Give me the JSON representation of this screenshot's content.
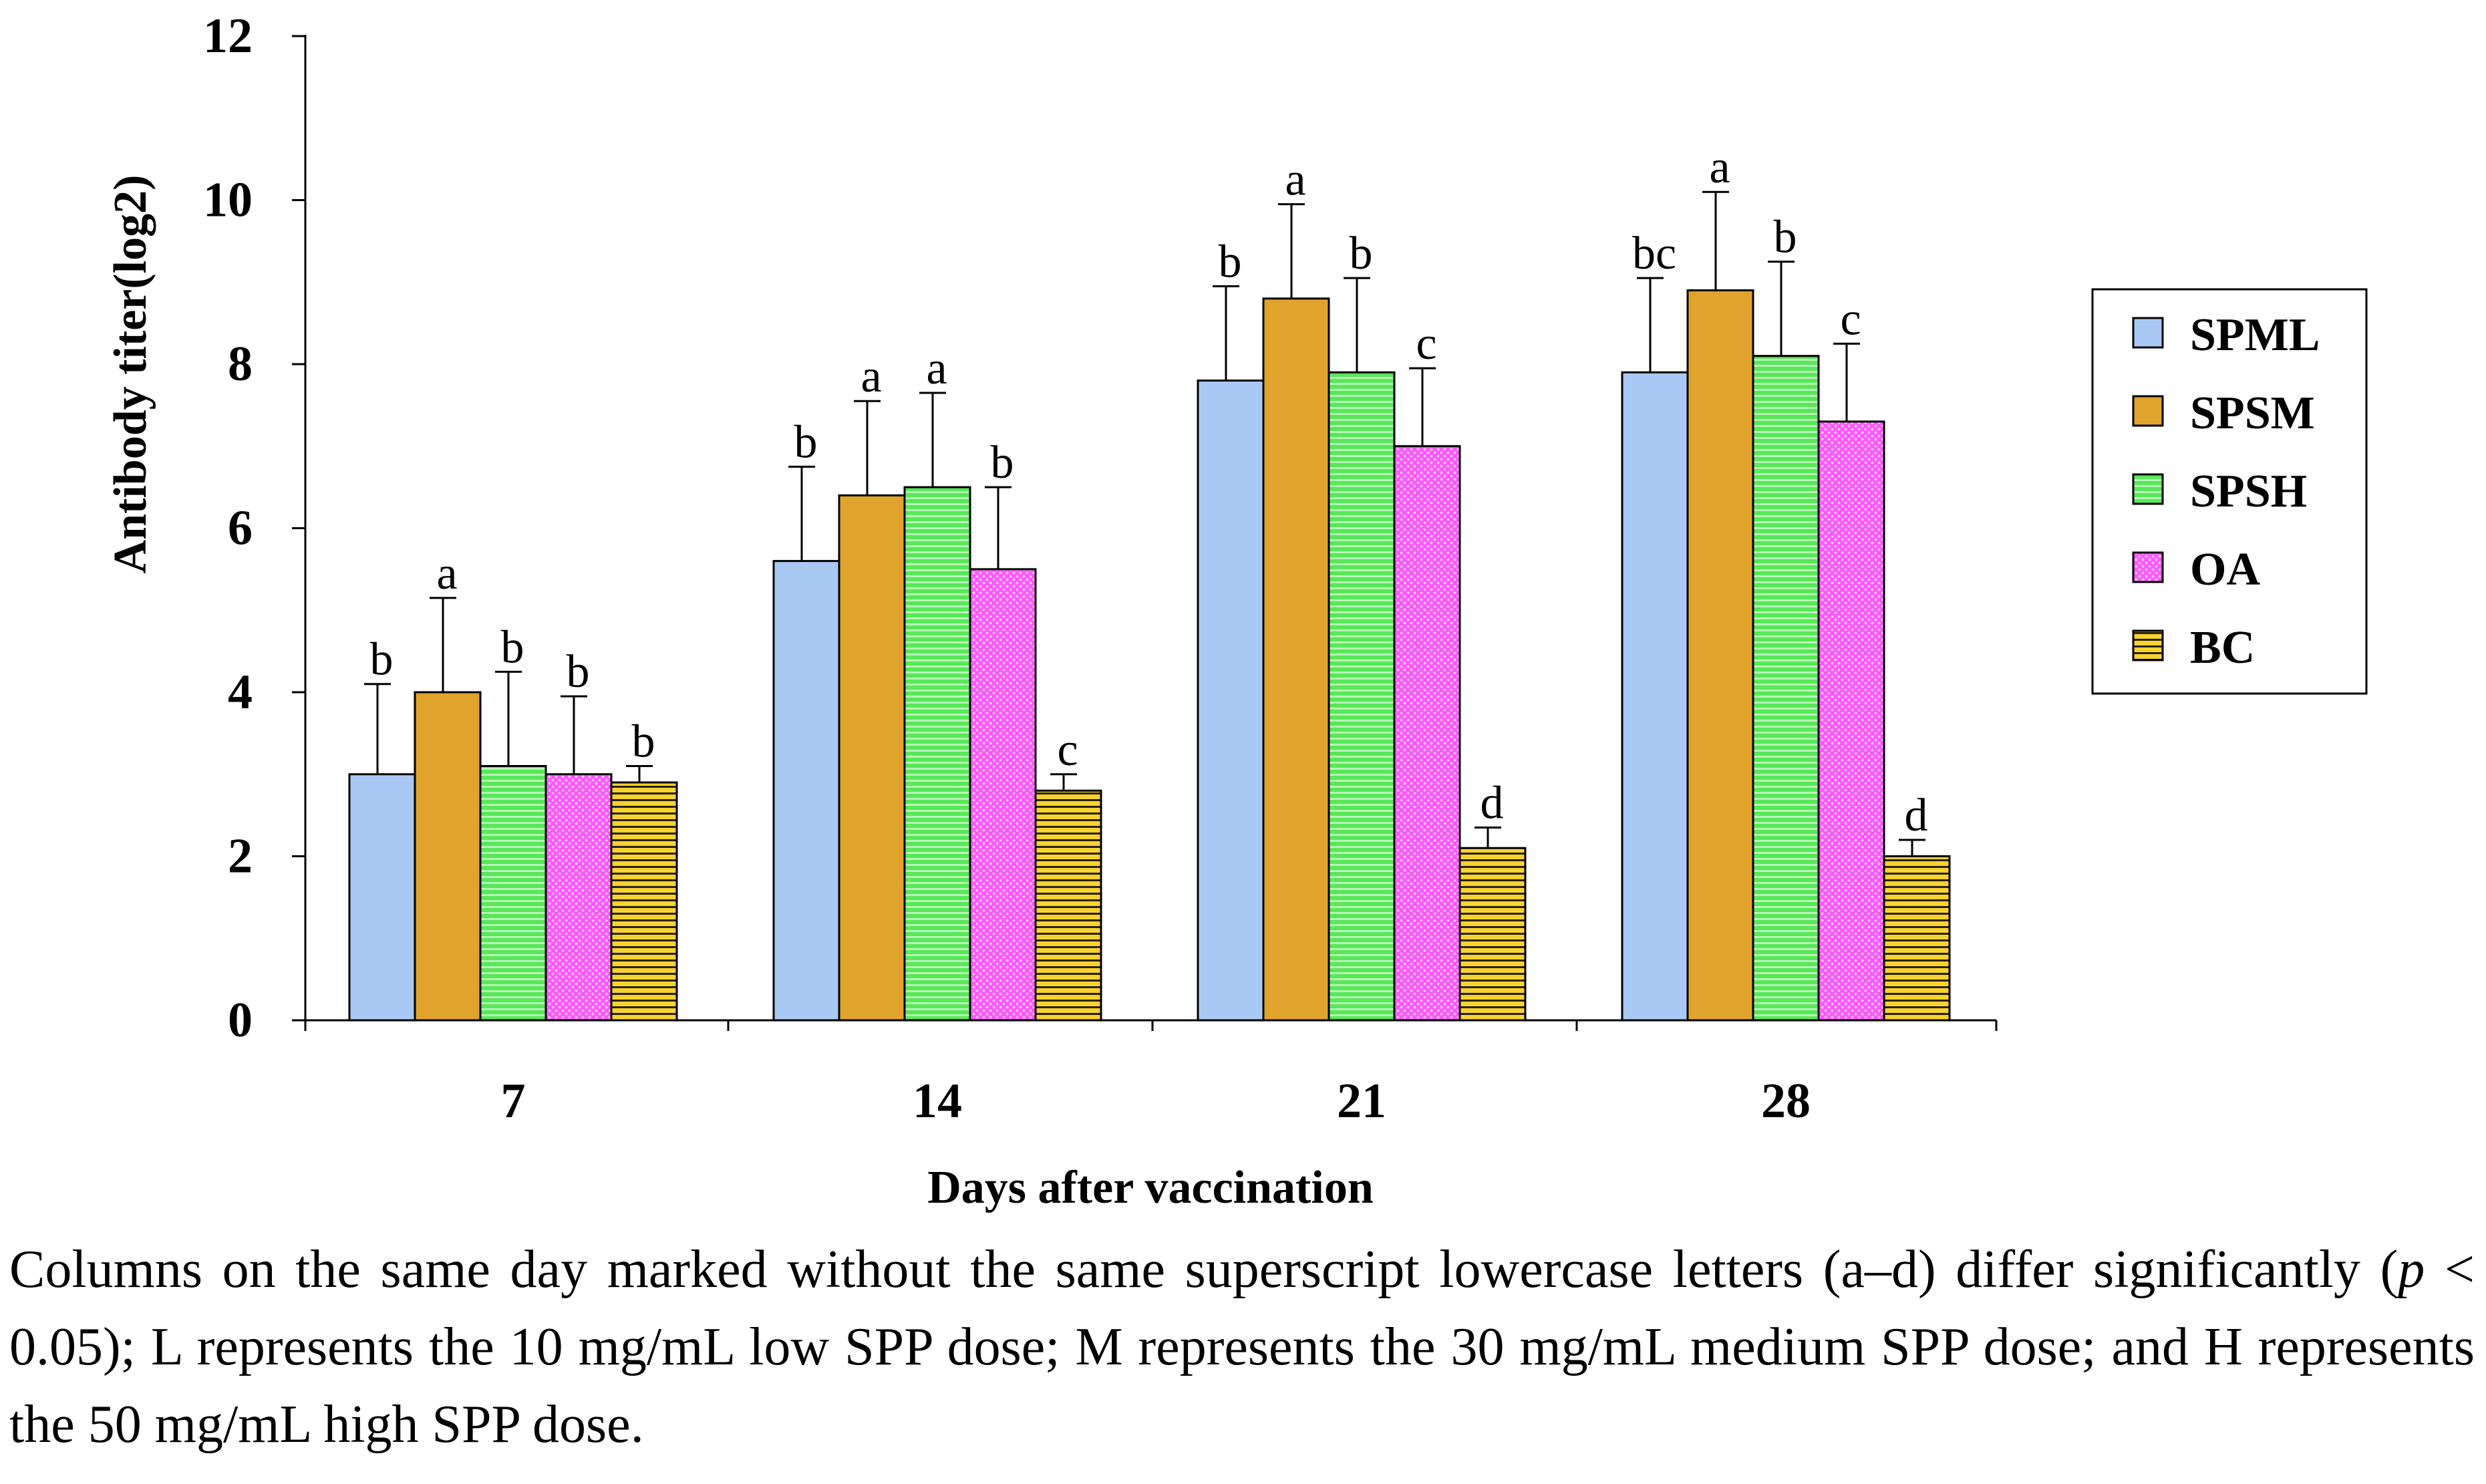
{
  "chart_data": {
    "type": "bar",
    "title": "",
    "xlabel": "Days after vaccination",
    "ylabel": "Antibody titer(log2)",
    "ylim": [
      0,
      12
    ],
    "yticks": [
      "0",
      "2",
      "4",
      "6",
      "8",
      "10",
      "12"
    ],
    "categories": [
      "7",
      "14",
      "21",
      "28"
    ],
    "legend_position": "right",
    "series": [
      {
        "name": "SPML",
        "color": "#a9c9f5",
        "pattern": "plain",
        "values": [
          3.0,
          5.6,
          7.8,
          7.9
        ],
        "errors": [
          1.1,
          1.15,
          1.15,
          1.15
        ],
        "labels": [
          "b",
          "b",
          "b",
          "bc"
        ]
      },
      {
        "name": "SPSM",
        "color": "#e0a32c",
        "pattern": "plain",
        "values": [
          4.0,
          6.4,
          8.8,
          8.9
        ],
        "errors": [
          1.15,
          1.15,
          1.15,
          1.2
        ],
        "labels": [
          "a",
          "a",
          "a",
          "a"
        ]
      },
      {
        "name": "SPSH",
        "color": "#58e858",
        "pattern": "hlines",
        "values": [
          3.1,
          6.5,
          7.9,
          8.1
        ],
        "errors": [
          1.15,
          1.15,
          1.15,
          1.15
        ],
        "labels": [
          "b",
          "a",
          "b",
          "b"
        ]
      },
      {
        "name": "OA",
        "color": "#ff55ff",
        "pattern": "dots",
        "values": [
          3.0,
          5.5,
          7.0,
          7.3
        ],
        "errors": [
          0.95,
          1.0,
          0.95,
          0.95
        ],
        "labels": [
          "b",
          "b",
          "c",
          "c"
        ]
      },
      {
        "name": "BC",
        "color": "#f7d233",
        "pattern": "hstripes",
        "values": [
          2.9,
          2.8,
          2.1,
          2.0
        ],
        "errors": [
          0.2,
          0.2,
          0.25,
          0.2
        ],
        "labels": [
          "b",
          "c",
          "d",
          "d"
        ]
      }
    ]
  },
  "caption": {
    "part1": "Columns on the same day marked without the same superscript lowercase letters (a–d) differ significantly (",
    "p_symbol": "p",
    "part2": " < 0.05); L represents the 10 mg/mL low SPP dose; M represents the 30 mg/mL medium SPP dose; and H represents the 50 mg/mL high SPP dose."
  }
}
